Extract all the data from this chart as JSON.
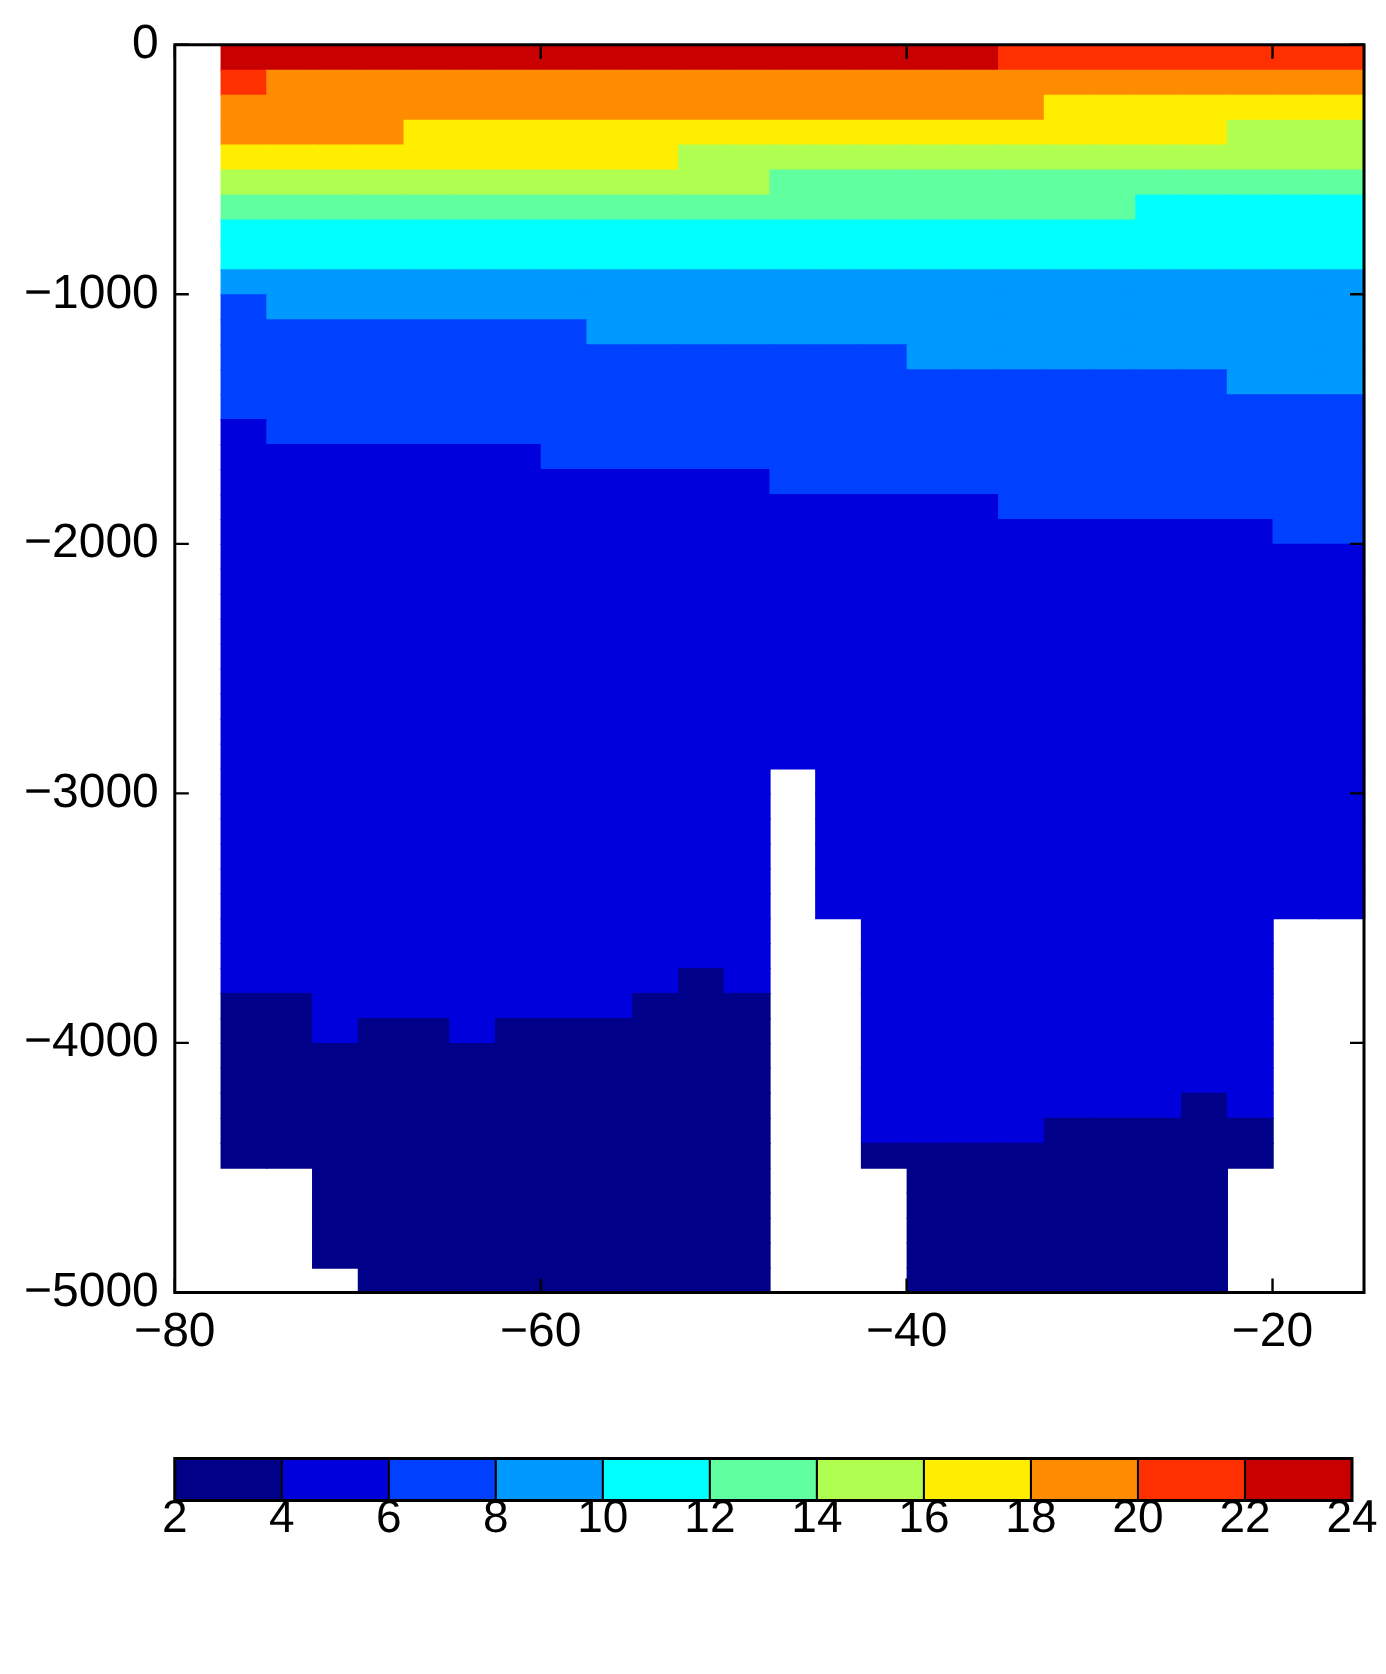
{
  "chart_data": {
    "type": "heatmap",
    "xlim": [
      -80,
      -15
    ],
    "xticks": [
      {
        "value": -80,
        "label": "−80"
      },
      {
        "value": -60,
        "label": "−60"
      },
      {
        "value": -40,
        "label": "−40"
      },
      {
        "value": -20,
        "label": "−20"
      }
    ],
    "ylim": [
      -5000,
      0
    ],
    "yticks": [
      {
        "value": -5000,
        "label": "−5000"
      },
      {
        "value": -4000,
        "label": "−4000"
      },
      {
        "value": -3000,
        "label": "−3000"
      },
      {
        "value": -2000,
        "label": "−2000"
      },
      {
        "value": -1000,
        "label": "−1000"
      },
      0
    ],
    "clim": [
      2,
      24
    ],
    "cticks": [
      2,
      4,
      6,
      8,
      10,
      12,
      14,
      16,
      18,
      20,
      22,
      24
    ],
    "colors": [
      "#000088",
      "#0000dd",
      "#0040ff",
      "#0099ff",
      "#00ffff",
      "#60ffa0",
      "#b0ff50",
      "#ffee00",
      "#ff8c00",
      "#ff3000",
      "#c80000"
    ],
    "cells": [
      [
        null,
        23,
        23,
        23,
        23,
        23,
        23,
        23,
        23,
        23,
        23,
        23,
        23,
        23,
        23,
        23,
        23,
        23,
        21,
        21,
        21,
        21,
        21,
        21,
        21,
        21
      ],
      [
        null,
        21,
        19,
        19,
        19,
        19,
        19,
        19,
        19,
        19,
        19,
        19,
        19,
        19,
        19,
        19,
        19,
        19,
        19,
        19,
        19,
        19,
        19,
        19,
        19,
        19
      ],
      [
        null,
        19,
        19,
        19,
        19,
        19,
        19,
        19,
        19,
        19,
        19,
        19,
        19,
        19,
        19,
        19,
        19,
        19,
        19,
        17,
        17,
        17,
        17,
        17,
        17,
        17
      ],
      [
        null,
        19,
        19,
        19,
        19,
        17,
        17,
        17,
        17,
        17,
        17,
        17,
        17,
        17,
        17,
        17,
        17,
        17,
        17,
        17,
        17,
        17,
        17,
        15,
        15,
        15
      ],
      [
        null,
        17,
        17,
        17,
        17,
        17,
        17,
        17,
        17,
        17,
        17,
        15,
        15,
        15,
        15,
        15,
        15,
        15,
        15,
        15,
        15,
        15,
        15,
        15,
        15,
        15
      ],
      [
        null,
        15,
        15,
        15,
        15,
        15,
        15,
        15,
        15,
        15,
        15,
        15,
        15,
        13,
        13,
        13,
        13,
        13,
        13,
        13,
        13,
        13,
        13,
        13,
        13,
        13
      ],
      [
        null,
        13,
        13,
        13,
        13,
        13,
        13,
        13,
        13,
        13,
        13,
        13,
        13,
        13,
        13,
        13,
        13,
        13,
        13,
        13,
        13,
        11,
        11,
        11,
        11,
        11
      ],
      [
        null,
        11,
        11,
        11,
        11,
        11,
        11,
        11,
        11,
        11,
        11,
        11,
        11,
        11,
        11,
        11,
        11,
        11,
        11,
        11,
        11,
        11,
        11,
        11,
        11,
        11
      ],
      [
        null,
        11,
        11,
        11,
        11,
        11,
        11,
        11,
        11,
        11,
        11,
        11,
        11,
        11,
        11,
        11,
        11,
        11,
        11,
        11,
        11,
        11,
        11,
        11,
        11,
        11
      ],
      [
        null,
        9,
        9,
        9,
        9,
        9,
        9,
        9,
        9,
        9,
        9,
        9,
        9,
        9,
        9,
        9,
        9,
        9,
        9,
        9,
        9,
        9,
        9,
        9,
        9,
        9
      ],
      [
        null,
        7,
        9,
        9,
        9,
        9,
        9,
        9,
        9,
        9,
        9,
        9,
        9,
        9,
        9,
        9,
        9,
        9,
        9,
        9,
        9,
        9,
        9,
        9,
        9,
        9
      ],
      [
        null,
        7,
        7,
        7,
        7,
        7,
        7,
        7,
        7,
        9,
        9,
        9,
        9,
        9,
        9,
        9,
        9,
        9,
        9,
        9,
        9,
        9,
        9,
        9,
        9,
        9
      ],
      [
        null,
        7,
        7,
        7,
        7,
        7,
        7,
        7,
        7,
        7,
        7,
        7,
        7,
        7,
        7,
        7,
        9,
        9,
        9,
        9,
        9,
        9,
        9,
        9,
        9,
        9
      ],
      [
        null,
        7,
        7,
        7,
        7,
        7,
        7,
        7,
        7,
        7,
        7,
        7,
        7,
        7,
        7,
        7,
        7,
        7,
        7,
        7,
        7,
        7,
        7,
        9,
        9,
        9
      ],
      [
        null,
        7,
        7,
        7,
        7,
        7,
        7,
        7,
        7,
        7,
        7,
        7,
        7,
        7,
        7,
        7,
        7,
        7,
        7,
        7,
        7,
        7,
        7,
        7,
        7,
        7
      ],
      [
        null,
        5,
        7,
        7,
        7,
        7,
        7,
        7,
        7,
        7,
        7,
        7,
        7,
        7,
        7,
        7,
        7,
        7,
        7,
        7,
        7,
        7,
        7,
        7,
        7,
        7
      ],
      [
        null,
        5,
        5,
        5,
        5,
        5,
        5,
        5,
        7,
        7,
        7,
        7,
        7,
        7,
        7,
        7,
        7,
        7,
        7,
        7,
        7,
        7,
        7,
        7,
        7,
        7
      ],
      [
        null,
        5,
        5,
        5,
        5,
        5,
        5,
        5,
        5,
        5,
        5,
        5,
        5,
        7,
        7,
        7,
        7,
        7,
        7,
        7,
        7,
        7,
        7,
        7,
        7,
        7
      ],
      [
        null,
        5,
        5,
        5,
        5,
        5,
        5,
        5,
        5,
        5,
        5,
        5,
        5,
        5,
        5,
        5,
        5,
        5,
        7,
        7,
        7,
        7,
        7,
        7,
        7,
        7
      ],
      [
        null,
        5,
        5,
        5,
        5,
        5,
        5,
        5,
        5,
        5,
        5,
        5,
        5,
        5,
        5,
        5,
        5,
        5,
        5,
        5,
        5,
        5,
        5,
        5,
        7,
        7
      ],
      [
        null,
        5,
        5,
        5,
        5,
        5,
        5,
        5,
        5,
        5,
        5,
        5,
        5,
        5,
        5,
        5,
        5,
        5,
        5,
        5,
        5,
        5,
        5,
        5,
        5,
        5
      ],
      [
        null,
        5,
        5,
        5,
        5,
        5,
        5,
        5,
        5,
        5,
        5,
        5,
        5,
        5,
        5,
        5,
        5,
        5,
        5,
        5,
        5,
        5,
        5,
        5,
        5,
        5
      ],
      [
        null,
        5,
        5,
        5,
        5,
        5,
        5,
        5,
        5,
        5,
        5,
        5,
        5,
        5,
        5,
        5,
        5,
        5,
        5,
        5,
        5,
        5,
        5,
        5,
        5,
        5
      ],
      [
        null,
        5,
        5,
        5,
        5,
        5,
        5,
        5,
        5,
        5,
        5,
        5,
        5,
        5,
        5,
        5,
        5,
        5,
        5,
        5,
        5,
        5,
        5,
        5,
        5,
        5
      ],
      [
        null,
        5,
        5,
        5,
        5,
        5,
        5,
        5,
        5,
        5,
        5,
        5,
        5,
        5,
        5,
        5,
        5,
        5,
        5,
        5,
        5,
        5,
        5,
        5,
        5,
        5
      ],
      [
        null,
        5,
        5,
        5,
        5,
        5,
        5,
        5,
        5,
        5,
        5,
        5,
        5,
        5,
        5,
        5,
        5,
        5,
        5,
        5,
        5,
        5,
        5,
        5,
        5,
        5
      ],
      [
        null,
        5,
        5,
        5,
        5,
        5,
        5,
        5,
        5,
        5,
        5,
        5,
        5,
        5,
        5,
        5,
        5,
        5,
        5,
        5,
        5,
        5,
        5,
        5,
        5,
        5
      ],
      [
        null,
        5,
        5,
        5,
        5,
        5,
        5,
        5,
        5,
        5,
        5,
        5,
        5,
        5,
        5,
        5,
        5,
        5,
        5,
        5,
        5,
        5,
        5,
        5,
        5,
        5
      ],
      [
        null,
        5,
        5,
        5,
        5,
        5,
        5,
        5,
        5,
        5,
        5,
        5,
        5,
        5,
        5,
        5,
        5,
        5,
        5,
        5,
        5,
        5,
        5,
        5,
        5,
        5
      ],
      [
        null,
        5,
        5,
        5,
        5,
        5,
        5,
        5,
        5,
        5,
        5,
        5,
        5,
        null,
        5,
        5,
        5,
        5,
        5,
        5,
        5,
        5,
        5,
        5,
        5,
        5
      ],
      [
        null,
        5,
        5,
        5,
        5,
        5,
        5,
        5,
        5,
        5,
        5,
        5,
        5,
        null,
        5,
        5,
        5,
        5,
        5,
        5,
        5,
        5,
        5,
        5,
        5,
        5
      ],
      [
        null,
        5,
        5,
        5,
        5,
        5,
        5,
        5,
        5,
        5,
        5,
        5,
        5,
        null,
        5,
        5,
        5,
        5,
        5,
        5,
        5,
        5,
        5,
        5,
        5,
        5
      ],
      [
        null,
        5,
        5,
        5,
        5,
        5,
        5,
        5,
        5,
        5,
        5,
        5,
        5,
        null,
        5,
        5,
        5,
        5,
        5,
        5,
        5,
        5,
        5,
        5,
        5,
        5
      ],
      [
        null,
        5,
        5,
        5,
        5,
        5,
        5,
        5,
        5,
        5,
        5,
        5,
        5,
        null,
        5,
        5,
        5,
        5,
        5,
        5,
        5,
        5,
        5,
        5,
        5,
        5
      ],
      [
        null,
        5,
        5,
        5,
        5,
        5,
        5,
        5,
        5,
        5,
        5,
        5,
        5,
        null,
        5,
        5,
        5,
        5,
        5,
        5,
        5,
        5,
        5,
        5,
        5,
        5
      ],
      [
        null,
        5,
        5,
        5,
        5,
        5,
        5,
        5,
        5,
        5,
        5,
        5,
        5,
        null,
        null,
        5,
        5,
        5,
        5,
        5,
        5,
        5,
        5,
        5,
        null,
        null
      ],
      [
        null,
        5,
        5,
        5,
        5,
        5,
        5,
        5,
        5,
        5,
        5,
        5,
        5,
        null,
        null,
        5,
        5,
        5,
        5,
        5,
        5,
        5,
        5,
        5,
        null,
        null
      ],
      [
        null,
        5,
        5,
        5,
        5,
        5,
        5,
        5,
        5,
        5,
        5,
        3,
        5,
        null,
        null,
        5,
        5,
        5,
        5,
        5,
        5,
        5,
        5,
        5,
        null,
        null
      ],
      [
        null,
        3,
        3,
        5,
        5,
        5,
        5,
        5,
        5,
        5,
        3,
        3,
        3,
        null,
        null,
        5,
        5,
        5,
        5,
        5,
        5,
        5,
        5,
        5,
        null,
        null
      ],
      [
        null,
        3,
        3,
        5,
        3,
        3,
        5,
        3,
        3,
        3,
        3,
        3,
        3,
        null,
        null,
        5,
        5,
        5,
        5,
        5,
        5,
        5,
        5,
        5,
        null,
        null
      ],
      [
        null,
        3,
        3,
        3,
        3,
        3,
        3,
        3,
        3,
        3,
        3,
        3,
        3,
        null,
        null,
        5,
        5,
        5,
        5,
        5,
        5,
        5,
        5,
        5,
        null,
        null
      ],
      [
        null,
        3,
        3,
        3,
        3,
        3,
        3,
        3,
        3,
        3,
        3,
        3,
        3,
        null,
        null,
        5,
        5,
        5,
        5,
        5,
        5,
        5,
        5,
        5,
        null,
        null
      ],
      [
        null,
        3,
        3,
        3,
        3,
        3,
        3,
        3,
        3,
        3,
        3,
        3,
        3,
        null,
        null,
        5,
        5,
        5,
        5,
        5,
        5,
        5,
        3,
        5,
        null,
        null
      ],
      [
        null,
        3,
        3,
        3,
        3,
        3,
        3,
        3,
        3,
        3,
        3,
        3,
        3,
        null,
        null,
        5,
        5,
        5,
        5,
        3,
        3,
        3,
        3,
        3,
        null,
        null
      ],
      [
        null,
        3,
        3,
        3,
        3,
        3,
        3,
        3,
        3,
        3,
        3,
        3,
        3,
        null,
        null,
        3,
        3,
        3,
        3,
        3,
        3,
        3,
        3,
        3,
        null,
        null
      ],
      [
        null,
        null,
        null,
        3,
        3,
        3,
        3,
        3,
        3,
        3,
        3,
        3,
        3,
        null,
        null,
        null,
        3,
        3,
        3,
        3,
        3,
        3,
        3,
        null,
        null,
        null
      ],
      [
        null,
        null,
        null,
        3,
        3,
        3,
        3,
        3,
        3,
        3,
        3,
        3,
        3,
        null,
        null,
        null,
        3,
        3,
        3,
        3,
        3,
        3,
        3,
        null,
        null,
        null
      ],
      [
        null,
        null,
        null,
        3,
        3,
        3,
        3,
        3,
        3,
        3,
        3,
        3,
        3,
        null,
        null,
        null,
        3,
        3,
        3,
        3,
        3,
        3,
        3,
        null,
        null,
        null
      ],
      [
        null,
        null,
        null,
        3,
        3,
        3,
        3,
        3,
        3,
        3,
        3,
        3,
        3,
        null,
        null,
        null,
        3,
        3,
        3,
        3,
        3,
        3,
        3,
        null,
        null,
        null
      ],
      [
        null,
        null,
        null,
        null,
        3,
        3,
        3,
        3,
        3,
        3,
        3,
        3,
        3,
        null,
        null,
        null,
        3,
        3,
        3,
        3,
        3,
        3,
        3,
        null,
        null,
        null
      ]
    ]
  }
}
